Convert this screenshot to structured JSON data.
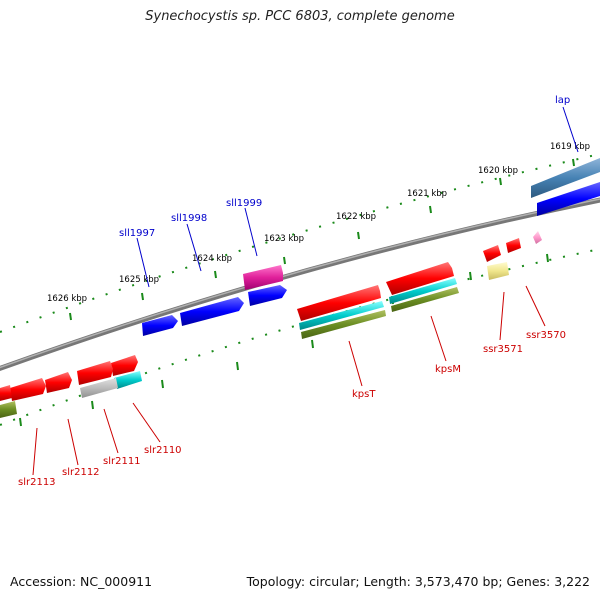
{
  "title": "Synechocystis sp. PCC 6803, complete genome",
  "footer": {
    "accession": "Accession: NC_000911",
    "summary": "Topology: circular; Length: 3,573,470 bp; Genes: 3,222"
  },
  "colors": {
    "forward_label": "#0000cc",
    "reverse_label": "#cc0000",
    "backbone": "#808080",
    "ticks": "#1a8a1a"
  },
  "kbp_ticks": [
    "1619 kbp",
    "1620 kbp",
    "1621 kbp",
    "1622 kbp",
    "1623 kbp",
    "1624 kbp",
    "1625 kbp",
    "1626 kbp"
  ],
  "genes_forward_strand": [
    {
      "label": "lap",
      "color": "#4682b4"
    },
    {
      "label": "sll1999",
      "color": "#0000ff"
    },
    {
      "label": "sll1998",
      "color": "#0000ff"
    },
    {
      "label": "sll1997",
      "color": "#0000ff"
    }
  ],
  "genes_reverse_strand": [
    {
      "label": "ssr3570",
      "color": "#ff99cc"
    },
    {
      "label": "ssr3571",
      "color": "#ff0000"
    },
    {
      "label": "kpsM",
      "color": "#ff0000"
    },
    {
      "label": "kpsT",
      "color": "#ff0000"
    },
    {
      "label": "slr2110",
      "color": "#ff0000"
    },
    {
      "label": "slr2111",
      "color": "#ff0000"
    },
    {
      "label": "slr2112",
      "color": "#ff0000"
    },
    {
      "label": "slr2113",
      "color": "#ff0000"
    }
  ]
}
